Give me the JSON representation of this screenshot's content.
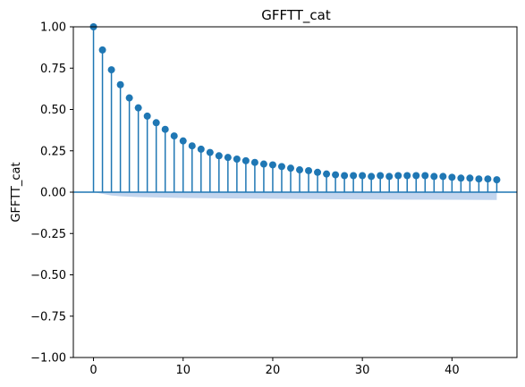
{
  "chart_data": {
    "type": "stem",
    "title": "GFFTT_cat",
    "xlabel": "",
    "ylabel": "GFFTT_cat",
    "xlim": [
      -2.25,
      47.25
    ],
    "ylim": [
      -1.0,
      1.0
    ],
    "xticks": [
      "0",
      "10",
      "20",
      "30",
      "40"
    ],
    "xtick_values": [
      0,
      10,
      20,
      30,
      40
    ],
    "yticks": [
      "−1.00",
      "−0.75",
      "−0.50",
      "−0.25",
      "0.00",
      "0.25",
      "0.50",
      "0.75",
      "1.00"
    ],
    "ytick_values": [
      -1.0,
      -0.75,
      -0.5,
      -0.25,
      0.0,
      0.25,
      0.5,
      0.75,
      1.0
    ],
    "grid": false,
    "series": [
      {
        "lags": [
          0,
          1,
          2,
          3,
          4,
          5,
          6,
          7,
          8,
          9,
          10,
          11,
          12,
          13,
          14,
          15,
          16,
          17,
          18,
          19,
          20,
          21,
          22,
          23,
          24,
          25,
          26,
          27,
          28,
          29,
          30,
          31,
          32,
          33,
          34,
          35,
          36,
          37,
          38,
          39,
          40,
          41,
          42,
          43,
          44,
          45
        ],
        "values": [
          1.0,
          0.86,
          0.74,
          0.65,
          0.57,
          0.51,
          0.46,
          0.42,
          0.38,
          0.34,
          0.31,
          0.28,
          0.26,
          0.24,
          0.22,
          0.21,
          0.2,
          0.19,
          0.18,
          0.17,
          0.165,
          0.155,
          0.145,
          0.135,
          0.13,
          0.12,
          0.11,
          0.105,
          0.1,
          0.1,
          0.1,
          0.095,
          0.1,
          0.095,
          0.1,
          0.1,
          0.1,
          0.1,
          0.095,
          0.095,
          0.09,
          0.085,
          0.085,
          0.08,
          0.08,
          0.075
        ]
      }
    ],
    "confidence_band": {
      "lags": [
        0,
        1,
        2,
        3,
        5,
        10,
        15,
        20,
        25,
        30,
        35,
        40,
        45
      ],
      "upper": [
        0.0,
        0.0,
        0.0,
        0.0,
        0.0,
        0.0,
        0.0,
        0.0,
        0.0,
        0.0,
        0.0,
        0.0,
        0.0
      ],
      "lower": [
        0.0,
        -0.01,
        -0.02,
        -0.025,
        -0.03,
        -0.035,
        -0.038,
        -0.04,
        -0.042,
        -0.044,
        -0.045,
        -0.046,
        -0.047
      ]
    },
    "colors": {
      "stem": "#1f77b4",
      "band": "#aec7e8",
      "zero_line": "#1f77b4"
    }
  }
}
